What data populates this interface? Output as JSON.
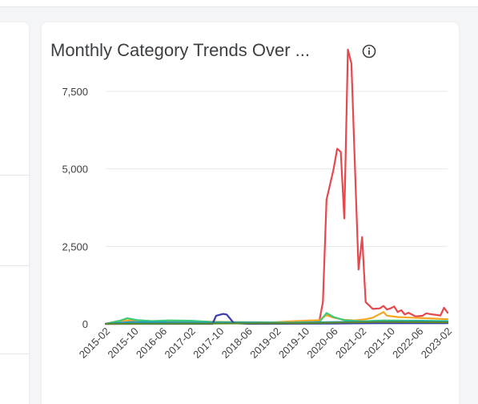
{
  "card": {
    "title": "Monthly Category Trends Over ..."
  },
  "icons": {
    "info": "info-circle-icon"
  },
  "chart_data": {
    "type": "line",
    "title": "Monthly Category Trends Over ...",
    "xlabel": "",
    "ylabel": "",
    "ylim": [
      0,
      9000
    ],
    "yticks": [
      0,
      2500,
      5000,
      7500
    ],
    "ytick_labels": [
      "0",
      "2,500",
      "5,000",
      "7,500"
    ],
    "xtick_labels": [
      "2015-02",
      "2015-10",
      "2016-06",
      "2017-02",
      "2017-10",
      "2018-06",
      "2019-02",
      "2019-10",
      "2020-06",
      "2021-02",
      "2021-10",
      "2022-06",
      "2023-02"
    ],
    "grid": true,
    "legend": "none",
    "x_start": "2015-02",
    "x_end": "2023-02",
    "series": [
      {
        "color": "#e5484d",
        "points": [
          [
            "2015-02",
            0
          ],
          [
            "2019-12",
            40
          ],
          [
            "2020-02",
            100
          ],
          [
            "2020-03",
            700
          ],
          [
            "2020-04",
            4000
          ],
          [
            "2020-06",
            5000
          ],
          [
            "2020-07",
            5650
          ],
          [
            "2020-08",
            5550
          ],
          [
            "2020-09",
            3400
          ],
          [
            "2020-10",
            8850
          ],
          [
            "2020-11",
            8400
          ],
          [
            "2020-12",
            5000
          ],
          [
            "2021-01",
            1750
          ],
          [
            "2021-02",
            2800
          ],
          [
            "2021-03",
            700
          ],
          [
            "2021-05",
            480
          ],
          [
            "2021-07",
            500
          ],
          [
            "2021-08",
            580
          ],
          [
            "2021-09",
            460
          ],
          [
            "2021-10",
            500
          ],
          [
            "2021-11",
            560
          ],
          [
            "2021-12",
            380
          ],
          [
            "2022-01",
            440
          ],
          [
            "2022-02",
            300
          ],
          [
            "2022-03",
            360
          ],
          [
            "2022-04",
            300
          ],
          [
            "2022-05",
            240
          ],
          [
            "2022-07",
            260
          ],
          [
            "2022-08",
            340
          ],
          [
            "2022-10",
            300
          ],
          [
            "2022-12",
            270
          ],
          [
            "2023-01",
            520
          ],
          [
            "2023-02",
            360
          ]
        ]
      },
      {
        "color": "#f5a623",
        "points": [
          [
            "2015-02",
            0
          ],
          [
            "2015-05",
            80
          ],
          [
            "2015-08",
            110
          ],
          [
            "2016-02",
            70
          ],
          [
            "2017-01",
            80
          ],
          [
            "2018-01",
            60
          ],
          [
            "2019-01",
            50
          ],
          [
            "2019-06",
            80
          ],
          [
            "2020-02",
            120
          ],
          [
            "2020-04",
            280
          ],
          [
            "2020-06",
            200
          ],
          [
            "2020-09",
            130
          ],
          [
            "2020-12",
            110
          ],
          [
            "2021-03",
            150
          ],
          [
            "2021-05",
            200
          ],
          [
            "2021-07",
            320
          ],
          [
            "2021-08",
            380
          ],
          [
            "2021-09",
            260
          ],
          [
            "2021-12",
            220
          ],
          [
            "2022-04",
            200
          ],
          [
            "2022-08",
            180
          ],
          [
            "2023-02",
            150
          ]
        ]
      },
      {
        "color": "#3ec97a",
        "points": [
          [
            "2015-02",
            0
          ],
          [
            "2015-06",
            100
          ],
          [
            "2015-08",
            180
          ],
          [
            "2015-11",
            120
          ],
          [
            "2016-03",
            90
          ],
          [
            "2016-08",
            110
          ],
          [
            "2017-02",
            100
          ],
          [
            "2017-08",
            60
          ],
          [
            "2018-06",
            50
          ],
          [
            "2019-06",
            40
          ],
          [
            "2020-02",
            60
          ],
          [
            "2020-04",
            350
          ],
          [
            "2020-06",
            220
          ],
          [
            "2020-09",
            120
          ],
          [
            "2021-02",
            80
          ],
          [
            "2021-08",
            110
          ],
          [
            "2022-06",
            100
          ],
          [
            "2023-02",
            90
          ]
        ]
      },
      {
        "color": "#1aa0c4",
        "points": [
          [
            "2015-02",
            0
          ],
          [
            "2015-09",
            60
          ],
          [
            "2016-06",
            50
          ],
          [
            "2017-06",
            40
          ],
          [
            "2018-06",
            40
          ],
          [
            "2019-06",
            30
          ],
          [
            "2020-06",
            60
          ],
          [
            "2021-06",
            70
          ],
          [
            "2022-06",
            80
          ],
          [
            "2023-02",
            70
          ]
        ]
      },
      {
        "color": "#3b3bb0",
        "points": [
          [
            "2015-02",
            0
          ],
          [
            "2017-08",
            0
          ],
          [
            "2017-09",
            260
          ],
          [
            "2017-11",
            320
          ],
          [
            "2017-12",
            300
          ],
          [
            "2018-02",
            20
          ],
          [
            "2018-06",
            0
          ],
          [
            "2020-06",
            10
          ],
          [
            "2021-06",
            20
          ],
          [
            "2023-02",
            20
          ]
        ]
      },
      {
        "color": "#5a8a2e",
        "points": [
          [
            "2015-02",
            0
          ],
          [
            "2019-10",
            20
          ],
          [
            "2020-06",
            40
          ],
          [
            "2021-06",
            60
          ],
          [
            "2023-02",
            50
          ]
        ]
      }
    ]
  }
}
